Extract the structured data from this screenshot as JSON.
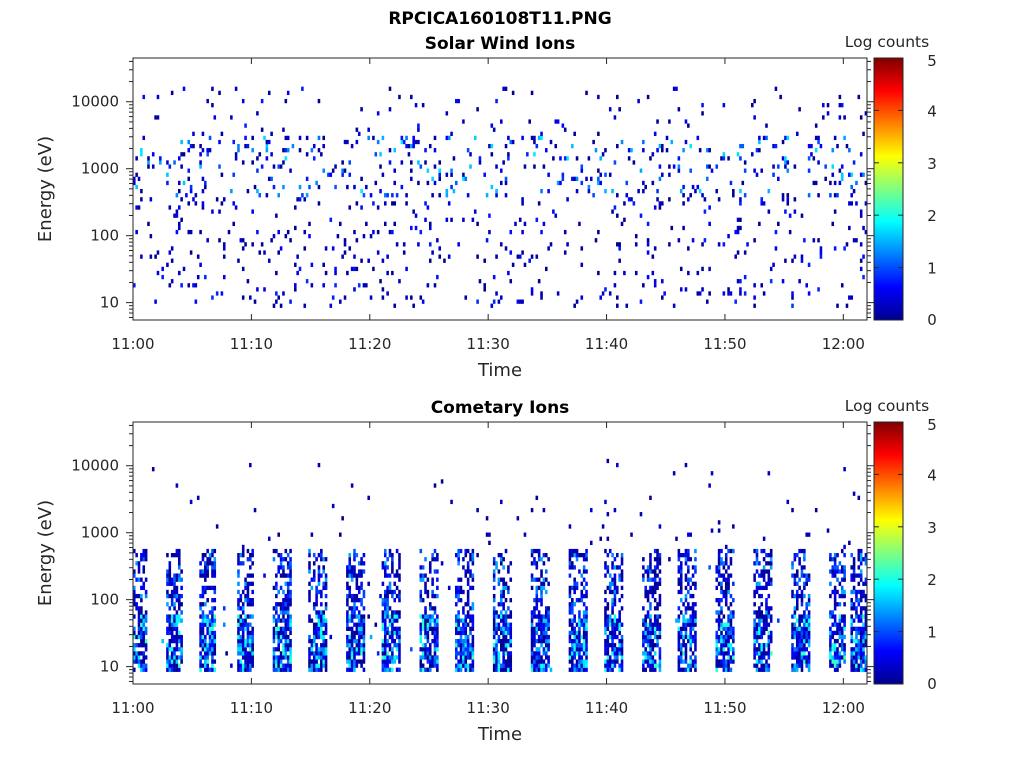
{
  "figure": {
    "filename": "RPCICA160108T11.PNG"
  },
  "chart_data": [
    {
      "type": "heatmap",
      "title": "Solar Wind Ions",
      "xlabel": "Time",
      "ylabel": "Energy (eV)",
      "x_tick_labels": [
        "11:00",
        "11:10",
        "11:20",
        "11:30",
        "11:40",
        "11:50",
        "12:00"
      ],
      "x_range": [
        "11:00",
        "12:02"
      ],
      "y_tick_labels": [
        "10",
        "100",
        "1000",
        "10000"
      ],
      "y_range": [
        5.5,
        45000
      ],
      "y_scale": "log",
      "colorbar": {
        "label": "Log counts",
        "range": [
          0,
          5
        ],
        "tick_labels": [
          "0",
          "1",
          "2",
          "3",
          "4",
          "5"
        ],
        "colormap": "jet"
      },
      "description_of_data": "sparse scattered low counts (log 0–1) across 10–20000 eV; clusters near 1000–2000 eV reaching log ~1.5–2",
      "bands": [
        {
          "e_min": 8,
          "e_max": 40,
          "density": 0.05,
          "level_max": 0.9
        },
        {
          "e_min": 40,
          "e_max": 400,
          "density": 0.05,
          "level_max": 0.8
        },
        {
          "e_min": 400,
          "e_max": 3000,
          "density": 0.09,
          "level_max": 1.8
        },
        {
          "e_min": 3000,
          "e_max": 16000,
          "density": 0.03,
          "level_max": 0.8
        }
      ]
    },
    {
      "type": "heatmap",
      "title": "Cometary Ions",
      "xlabel": "Time",
      "ylabel": "Energy (eV)",
      "x_tick_labels": [
        "11:00",
        "11:10",
        "11:20",
        "11:30",
        "11:40",
        "11:50",
        "12:00"
      ],
      "x_range": [
        "11:00",
        "12:02"
      ],
      "y_tick_labels": [
        "10",
        "100",
        "1000",
        "10000"
      ],
      "y_range": [
        5.5,
        45000
      ],
      "y_scale": "log",
      "colorbar": {
        "label": "Log counts",
        "range": [
          0,
          5
        ],
        "tick_labels": [
          "0",
          "1",
          "2",
          "3",
          "4",
          "5"
        ],
        "colormap": "jet"
      },
      "description_of_data": "periodic vertical bursts every ~3 minutes spanning ~8–600 eV, strongest (log ~1.5–2.2) near 10–40 eV; sparse points up to 10000 eV",
      "burst_times_min": [
        0.5,
        3.5,
        6.3,
        9.5,
        12.6,
        15.6,
        18.8,
        21.8,
        25.0,
        28.0,
        31.2,
        34.4,
        37.6,
        40.6,
        43.8,
        46.8,
        50.0,
        53.2,
        56.4,
        59.5,
        61.4
      ],
      "bands": [
        {
          "e_min": 8,
          "e_max": 60,
          "density": 0.8,
          "level_max": 2.2
        },
        {
          "e_min": 60,
          "e_max": 600,
          "density": 0.45,
          "level_max": 1.5
        },
        {
          "e_min": 600,
          "e_max": 12000,
          "density": 0.01,
          "level_max": 0.5
        }
      ]
    }
  ]
}
